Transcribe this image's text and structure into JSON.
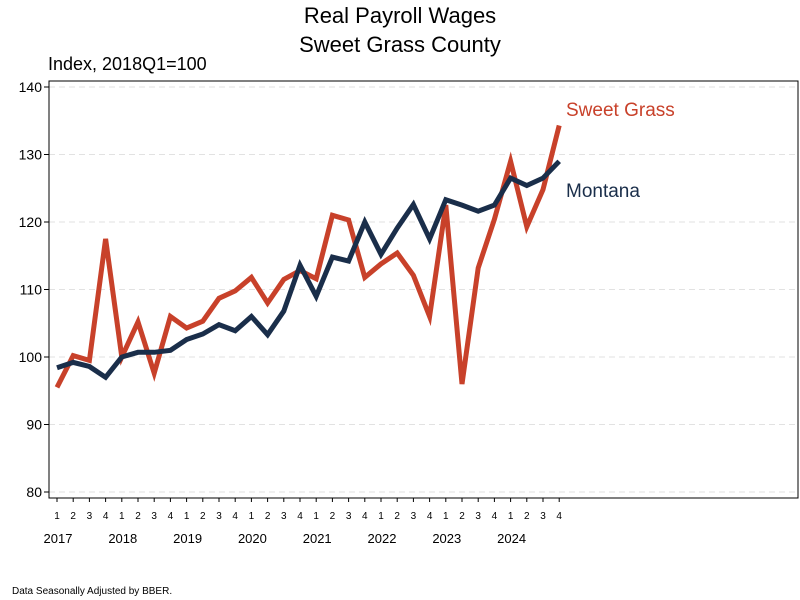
{
  "chart_data": {
    "type": "line",
    "title_line1": "Real Payroll Wages",
    "title_line2": "Sweet Grass County",
    "ylabel": "Index, 2018Q1=100",
    "xlabel": "",
    "ylim": [
      80,
      140
    ],
    "yticks": [
      "80",
      "90",
      "100",
      "110",
      "120",
      "130",
      "140"
    ],
    "grid": "horizontal dashed",
    "quarters": [
      "1",
      "2",
      "3",
      "4",
      "1",
      "2",
      "3",
      "4",
      "1",
      "2",
      "3",
      "4",
      "1",
      "2",
      "3",
      "4",
      "1",
      "2",
      "3",
      "4",
      "1",
      "2",
      "3",
      "4",
      "1",
      "2",
      "3",
      "4",
      "1",
      "2",
      "3",
      "4"
    ],
    "years": [
      "2017",
      "2018",
      "2019",
      "2020",
      "2021",
      "2022",
      "2023",
      "2024"
    ],
    "series": [
      {
        "name": "Sweet Grass",
        "color": "#c8412a",
        "values": [
          95.5,
          100.2,
          99.5,
          117.5,
          100.0,
          105.2,
          97.6,
          106.0,
          104.3,
          105.3,
          108.7,
          109.8,
          111.8,
          108.0,
          111.5,
          112.8,
          111.6,
          121.0,
          120.3,
          111.8,
          113.8,
          115.4,
          112.1,
          106.0,
          122.5,
          96.0,
          113.2,
          120.4,
          129.0,
          119.3,
          124.8,
          134.3
        ]
      },
      {
        "name": "Montana",
        "color": "#1a2e4a",
        "values": [
          98.4,
          99.2,
          98.6,
          97.0,
          100.0,
          100.7,
          100.7,
          101.0,
          102.6,
          103.4,
          104.8,
          103.9,
          106.0,
          103.3,
          106.8,
          113.6,
          109.0,
          114.8,
          114.2,
          120.0,
          115.2,
          119.1,
          122.6,
          117.5,
          123.3,
          122.5,
          121.6,
          122.5,
          126.5,
          125.4,
          126.5,
          129.0
        ]
      }
    ],
    "footnote": "Data Seasonally Adjusted by BBER."
  }
}
